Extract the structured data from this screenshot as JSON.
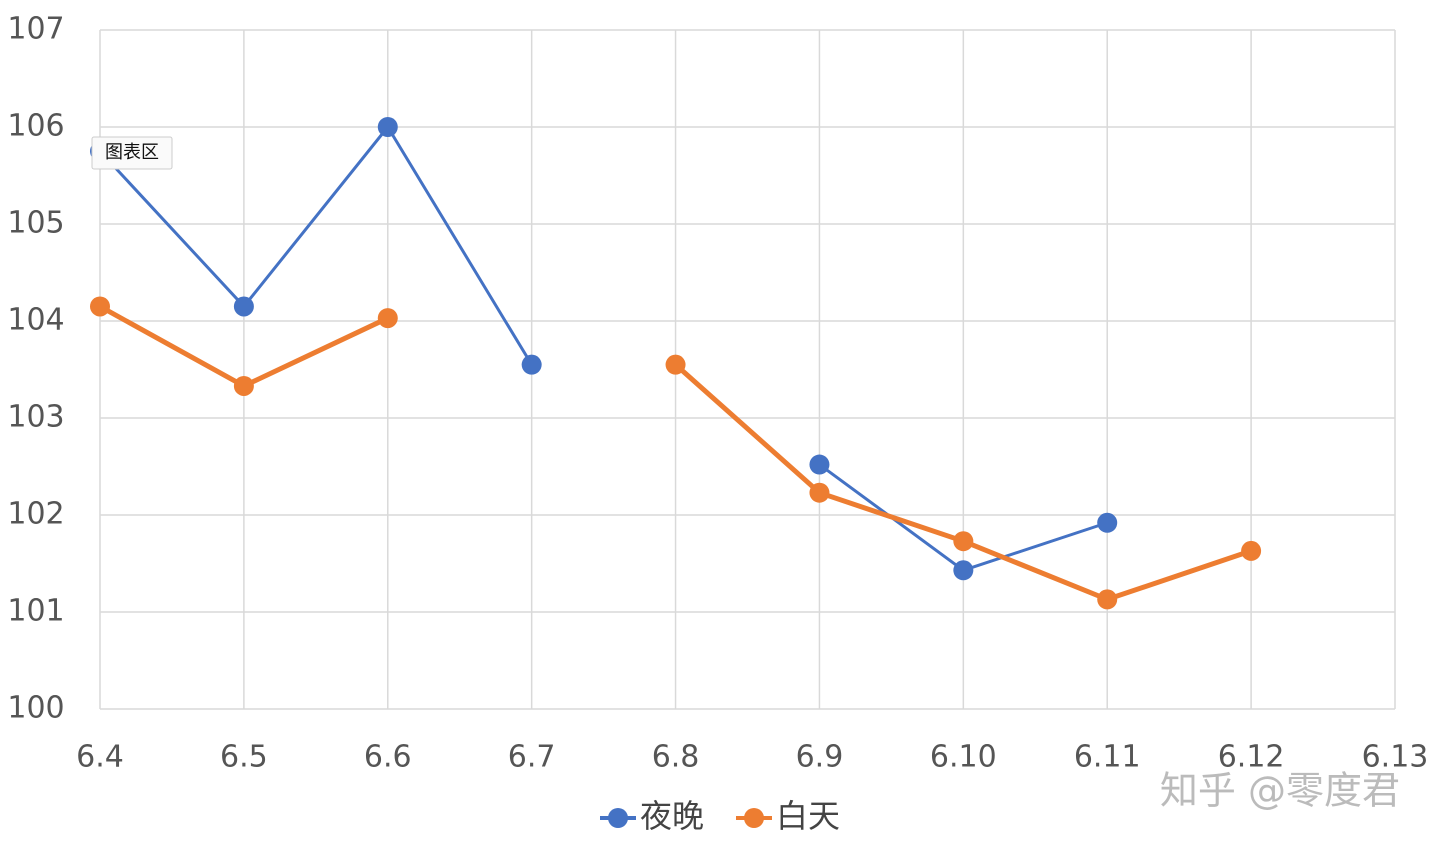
{
  "chart_data": {
    "type": "line",
    "categories": [
      "6.4",
      "6.5",
      "6.6",
      "6.7",
      "6.8",
      "6.9",
      "6.10",
      "6.11",
      "6.12",
      "6.13"
    ],
    "series": [
      {
        "name": "夜晚",
        "color": "#4472c4",
        "values": [
          105.75,
          104.15,
          106.0,
          103.55,
          null,
          102.52,
          101.43,
          101.92,
          null,
          null
        ]
      },
      {
        "name": "白天",
        "color": "#ed7d31",
        "values": [
          104.15,
          103.33,
          104.03,
          null,
          103.55,
          102.23,
          101.73,
          101.13,
          101.63,
          null
        ]
      }
    ],
    "ylim": [
      100,
      107
    ],
    "yticks": [
      100,
      101,
      102,
      103,
      104,
      105,
      106,
      107
    ],
    "grid": true,
    "legend": "bottom",
    "tooltip": "图表区",
    "watermark": "知乎 @零度君"
  }
}
